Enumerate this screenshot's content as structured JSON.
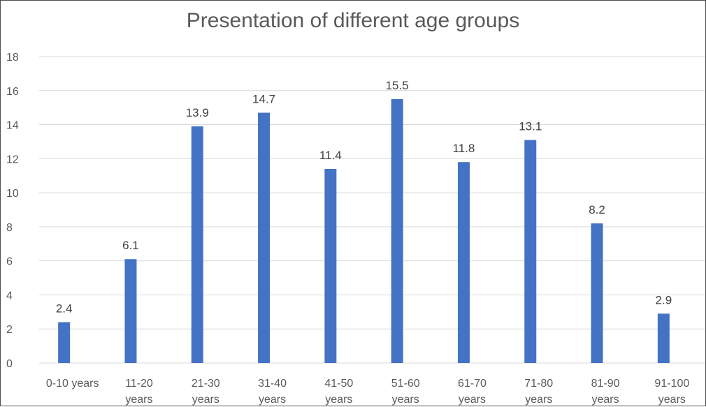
{
  "chart_data": {
    "type": "bar",
    "title": "Presentation of different age groups",
    "categories": [
      "0-10 years",
      "11-20 years",
      "21-30 years",
      "31-40 years",
      "41-50 years",
      "51-60 years",
      "61-70 years",
      "71-80 years",
      "81-90 years",
      "91-100 years"
    ],
    "values": [
      2.4,
      6.1,
      13.9,
      14.7,
      11.4,
      15.5,
      11.8,
      13.1,
      8.2,
      2.9
    ],
    "yticks": [
      0,
      2,
      4,
      6,
      8,
      10,
      12,
      14,
      16,
      18
    ],
    "ylim": [
      0,
      18
    ],
    "grid": true,
    "legend": "none",
    "data_labels": true,
    "bar_color": "#4472c4",
    "grid_color": "#d9d9d9"
  }
}
